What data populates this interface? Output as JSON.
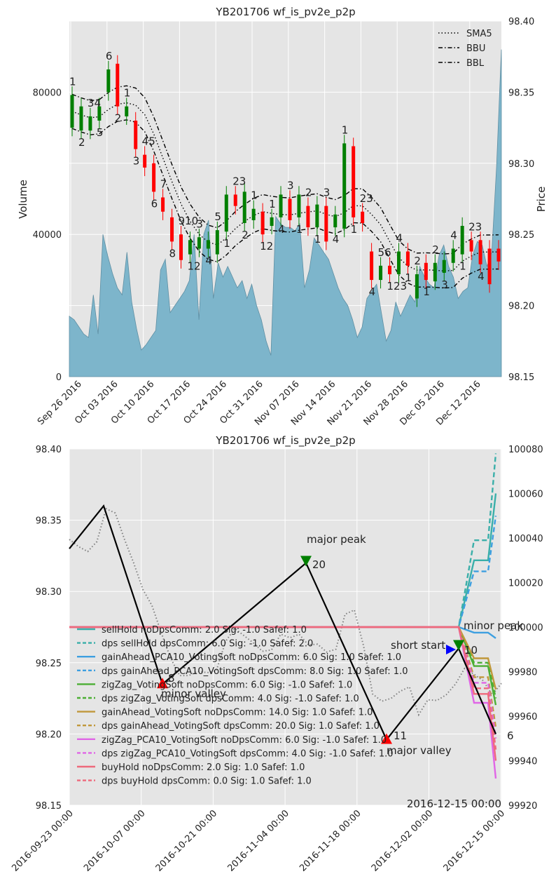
{
  "colors": {
    "panel_bg": "#e5e5e5",
    "grid": "#ffffff",
    "volume_fill": "#7db5cb",
    "volume_line": "#5f8fa3",
    "candle_up": "#007f00",
    "candle_down": "#ff0000",
    "zigzag": "#000000",
    "price_dotted": "#808080"
  },
  "chart_data": [
    {
      "type": "candlestick",
      "title": "YB201706 wf_is_pv2e_p2p",
      "ylabel_left": "Volume",
      "ylabel_right": "Price",
      "ylim_left": [
        0,
        100000
      ],
      "ylim_right": [
        98.15,
        98.4
      ],
      "left_ticks": [
        "0",
        "40000",
        "80000"
      ],
      "right_ticks": [
        "98.15",
        "98.20",
        "98.25",
        "98.30",
        "98.35",
        "98.40"
      ],
      "x_tick_labels": [
        "Sep 26 2016",
        "Oct 03 2016",
        "Oct 10 2016",
        "Oct 17 2016",
        "Oct 24 2016",
        "Oct 31 2016",
        "Nov 07 2016",
        "Nov 14 2016",
        "Nov 21 2016",
        "Nov 28 2016",
        "Dec 05 2016",
        "Dec 12 2016"
      ],
      "legend": {
        "position": "top-right",
        "entries": [
          "SMA5",
          "BBU",
          "BBL"
        ]
      },
      "volume": [
        17000,
        16000,
        14000,
        12000,
        11000,
        23000,
        12000,
        40000,
        34000,
        29000,
        25000,
        23000,
        35000,
        21000,
        13500,
        7500,
        9000,
        11000,
        13000,
        30000,
        33000,
        18000,
        20000,
        22000,
        24000,
        27000,
        40000,
        16000,
        40000,
        44000,
        22000,
        32000,
        28000,
        31000,
        28000,
        25000,
        27000,
        22000,
        26000,
        20000,
        16000,
        10000,
        6000,
        45000,
        43000,
        42000,
        42000,
        41000,
        43000,
        25000,
        30000,
        39000,
        37000,
        35000,
        33000,
        29000,
        25000,
        22000,
        20000,
        16000,
        11000,
        14000,
        22000,
        24000,
        26000,
        18000,
        10000,
        13000,
        21000,
        17000,
        20000,
        23000,
        21000,
        31000,
        28000,
        26000,
        25000,
        34000,
        37000,
        31000,
        28000,
        22000,
        24000,
        25000,
        34000,
        38000,
        37000,
        31000,
        35000,
        59000,
        92000
      ],
      "candles": [
        {
          "o": 98.325,
          "c": 98.348
        },
        {
          "o": 98.323,
          "c": 98.34
        },
        {
          "o": 98.323,
          "c": 98.333
        },
        {
          "o": 98.33,
          "c": 98.34
        },
        {
          "o": 98.35,
          "c": 98.366
        },
        {
          "o": 98.37,
          "c": 98.34
        },
        {
          "o": 98.333,
          "c": 98.34
        },
        {
          "o": 98.33,
          "c": 98.31
        },
        {
          "o": 98.306,
          "c": 98.297
        },
        {
          "o": 98.3,
          "c": 98.28
        },
        {
          "o": 98.276,
          "c": 98.266
        },
        {
          "o": 98.262,
          "c": 98.245
        },
        {
          "o": 98.25,
          "c": 98.232
        },
        {
          "o": 98.236,
          "c": 98.246
        },
        {
          "o": 98.24,
          "c": 98.248
        },
        {
          "o": 98.24,
          "c": 98.246
        },
        {
          "o": 98.236,
          "c": 98.253
        },
        {
          "o": 98.252,
          "c": 98.278
        },
        {
          "o": 98.278,
          "c": 98.27
        },
        {
          "o": 98.258,
          "c": 98.28
        },
        {
          "o": 98.26,
          "c": 98.268
        },
        {
          "o": 98.266,
          "c": 98.25
        },
        {
          "o": 98.256,
          "c": 98.262
        },
        {
          "o": 98.262,
          "c": 98.278
        },
        {
          "o": 98.275,
          "c": 98.26
        },
        {
          "o": 98.262,
          "c": 98.278
        },
        {
          "o": 98.27,
          "c": 98.255
        },
        {
          "o": 98.255,
          "c": 98.271
        },
        {
          "o": 98.27,
          "c": 98.245
        },
        {
          "o": 98.255,
          "c": 98.264
        },
        {
          "o": 98.254,
          "c": 98.314
        },
        {
          "o": 98.312,
          "c": 98.262
        },
        {
          "o": 98.266,
          "c": 98.258
        },
        {
          "o": 98.238,
          "c": 98.218
        },
        {
          "o": 98.218,
          "c": 98.228
        },
        {
          "o": 98.228,
          "c": 98.222
        },
        {
          "o": 98.222,
          "c": 98.238
        },
        {
          "o": 98.238,
          "c": 98.228
        },
        {
          "o": 98.205,
          "c": 98.222
        },
        {
          "o": 98.23,
          "c": 98.218
        },
        {
          "o": 98.217,
          "c": 98.23
        },
        {
          "o": 98.223,
          "c": 98.232
        },
        {
          "o": 98.23,
          "c": 98.24
        },
        {
          "o": 98.236,
          "c": 98.256
        },
        {
          "o": 98.246,
          "c": 98.238
        },
        {
          "o": 98.246,
          "c": 98.229
        },
        {
          "o": 98.24,
          "c": 98.215
        },
        {
          "o": 98.24,
          "c": 98.231
        }
      ],
      "candle_labels": [
        "1",
        "2",
        "34",
        "5",
        "6",
        "2",
        "1",
        "3",
        "45",
        "6",
        "7",
        "8",
        "910",
        "12",
        "3",
        "4",
        "5",
        "1",
        "23",
        "2",
        "1",
        "12",
        "1",
        "4",
        "3",
        "1",
        "2",
        "1",
        "3",
        "4",
        "1",
        "1",
        "23",
        "4",
        "56",
        "123",
        "4",
        "1",
        "2",
        "1",
        "2",
        "3",
        "4",
        "1",
        "23",
        "4"
      ]
    },
    {
      "type": "line",
      "title": "YB201706 wf_is_pv2e_p2p",
      "ylim_left": [
        98.15,
        98.4
      ],
      "ylim_right": [
        99920,
        100080
      ],
      "left_ticks": [
        "98.15",
        "98.20",
        "98.25",
        "98.30",
        "98.35",
        "98.40"
      ],
      "right_ticks": [
        "99920",
        "99940",
        "99960",
        "99980",
        "100000",
        "100020",
        "100040",
        "100060",
        "100080"
      ],
      "x_tick_labels": [
        "2016-09-23 00:00",
        "2016-10-07 00:00",
        "2016-10-21 00:00",
        "2016-11-04 00:00",
        "2016-11-18 00:00",
        "2016-12-02 00:00",
        "2016-12-15 00:00"
      ],
      "corner_label": "2016-12-15 00:00",
      "zigzag": [
        98.33,
        98.36,
        98.235,
        98.32,
        98.196,
        98.26,
        98.2
      ],
      "annotations": [
        "minor valley",
        "major peak",
        "20",
        "major valley",
        "11",
        "short start",
        "10",
        "minor peak",
        "6",
        "8"
      ],
      "legend": [
        {
          "name": "sellHold noDpsComm: 2.0 Sig: -1.0 Safef: 1.0",
          "color": "#3aafa9",
          "dash": false
        },
        {
          "name": "dps sellHold dpsComm: 6.0 Sig: -1.0 Safef: 2.0",
          "color": "#3aafa9",
          "dash": true
        },
        {
          "name": "gainAhead_PCA10_VotingSoft noDpsComm: 6.0 Sig: 1.0 Safef: 1.0",
          "color": "#3d9fe0",
          "dash": false
        },
        {
          "name": "dps gainAhead_PCA10_VotingSoft dpsComm: 8.0 Sig: 1.0 Safef: 1.0",
          "color": "#3d9fe0",
          "dash": true
        },
        {
          "name": "zigZag_VotingSoft noDpsComm: 6.0 Sig: -1.0 Safef: 1.0",
          "color": "#4caf35",
          "dash": false
        },
        {
          "name": "dps zigZag_VotingSoft dpsComm: 4.0 Sig: -1.0 Safef: 1.0",
          "color": "#4caf35",
          "dash": true
        },
        {
          "name": "gainAhead_VotingSoft noDpsComm: 14.0 Sig: 1.0 Safef: 1.0",
          "color": "#c0983a",
          "dash": false
        },
        {
          "name": "dps gainAhead_VotingSoft dpsComm: 20.0 Sig: 1.0 Safef: 1.0",
          "color": "#c0983a",
          "dash": true
        },
        {
          "name": "zigZag_PCA10_VotingSoft noDpsComm: 6.0 Sig: -1.0 Safef: 1.0",
          "color": "#e066e6",
          "dash": false
        },
        {
          "name": "dps zigZag_PCA10_VotingSoft dpsComm: 4.0 Sig: -1.0 Safef: 1.0",
          "color": "#e066e6",
          "dash": true
        },
        {
          "name": "buyHold noDpsComm: 2.0 Sig: 1.0 Safef: 1.0",
          "color": "#ee6a7c",
          "dash": false
        },
        {
          "name": "dps buyHold dpsComm: 0.0 Sig: 1.0 Safef: 1.0",
          "color": "#ee6a7c",
          "dash": true
        }
      ]
    }
  ]
}
